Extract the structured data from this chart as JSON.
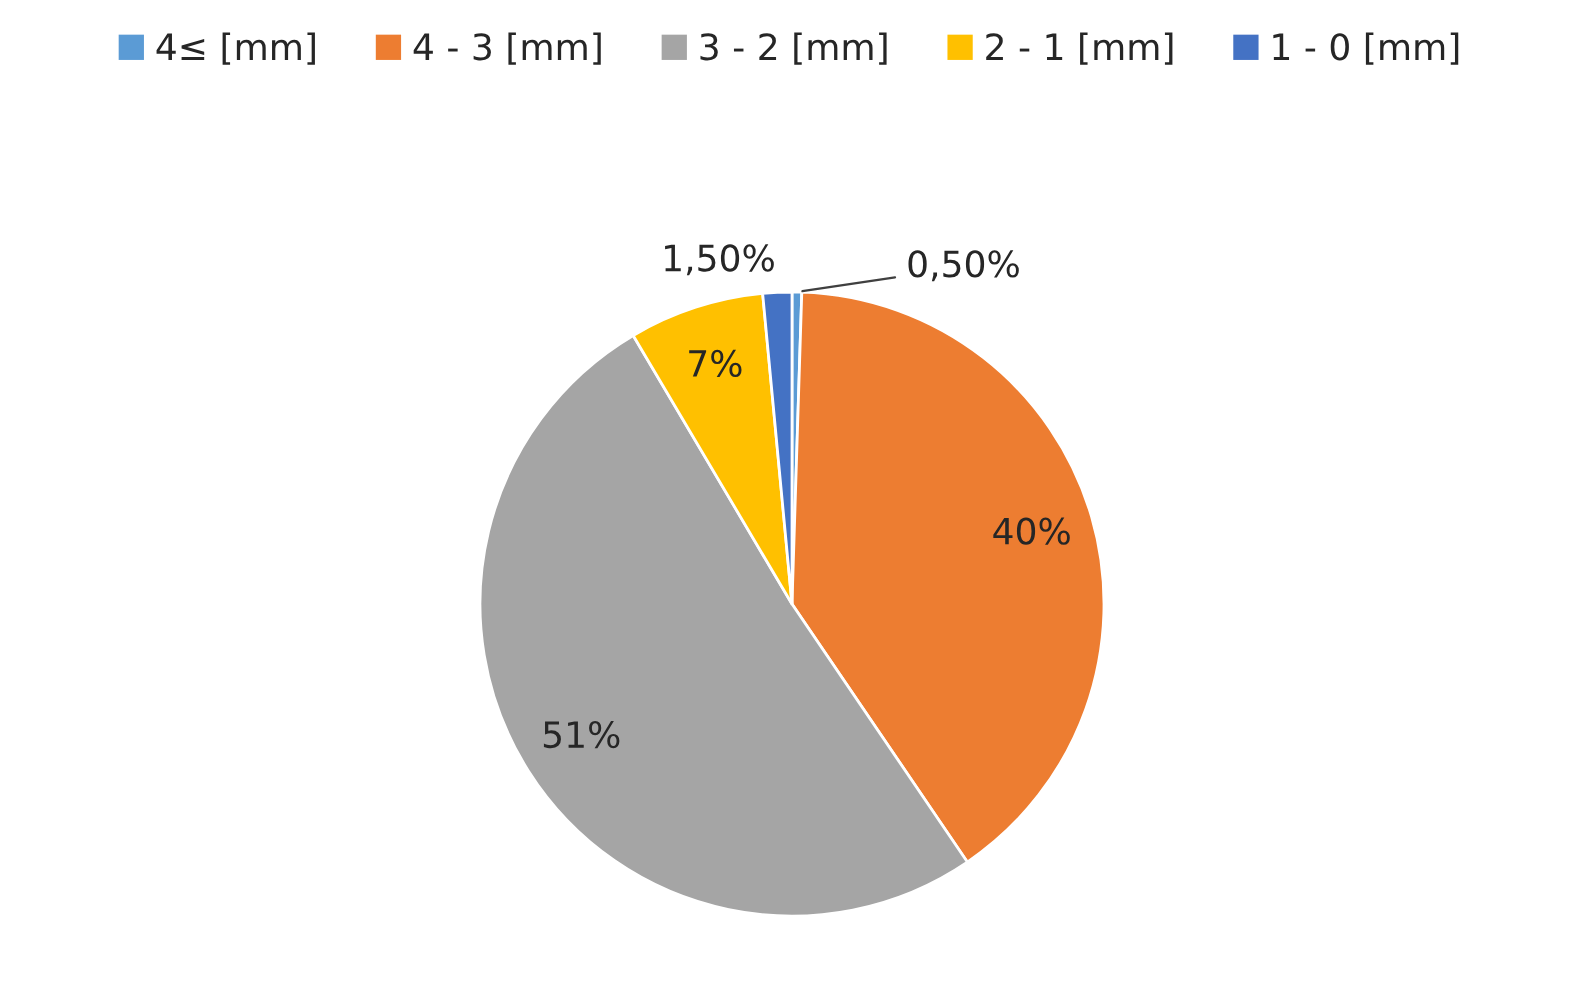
{
  "chart_data": {
    "type": "pie",
    "categories": [
      "4≤ [mm]",
      "4 - 3 [mm]",
      "3 - 2 [mm]",
      "2 - 1 [mm]",
      "1 - 0 [mm]"
    ],
    "values": [
      0.5,
      40,
      51,
      7,
      1.5
    ],
    "value_labels": [
      "0,50%",
      "40%",
      "51%",
      "7%",
      "1,50%"
    ],
    "colors": [
      "#5b9bd5",
      "#ed7d31",
      "#a5a5a5",
      "#ffc000",
      "#4472c4"
    ],
    "legend": "top"
  }
}
